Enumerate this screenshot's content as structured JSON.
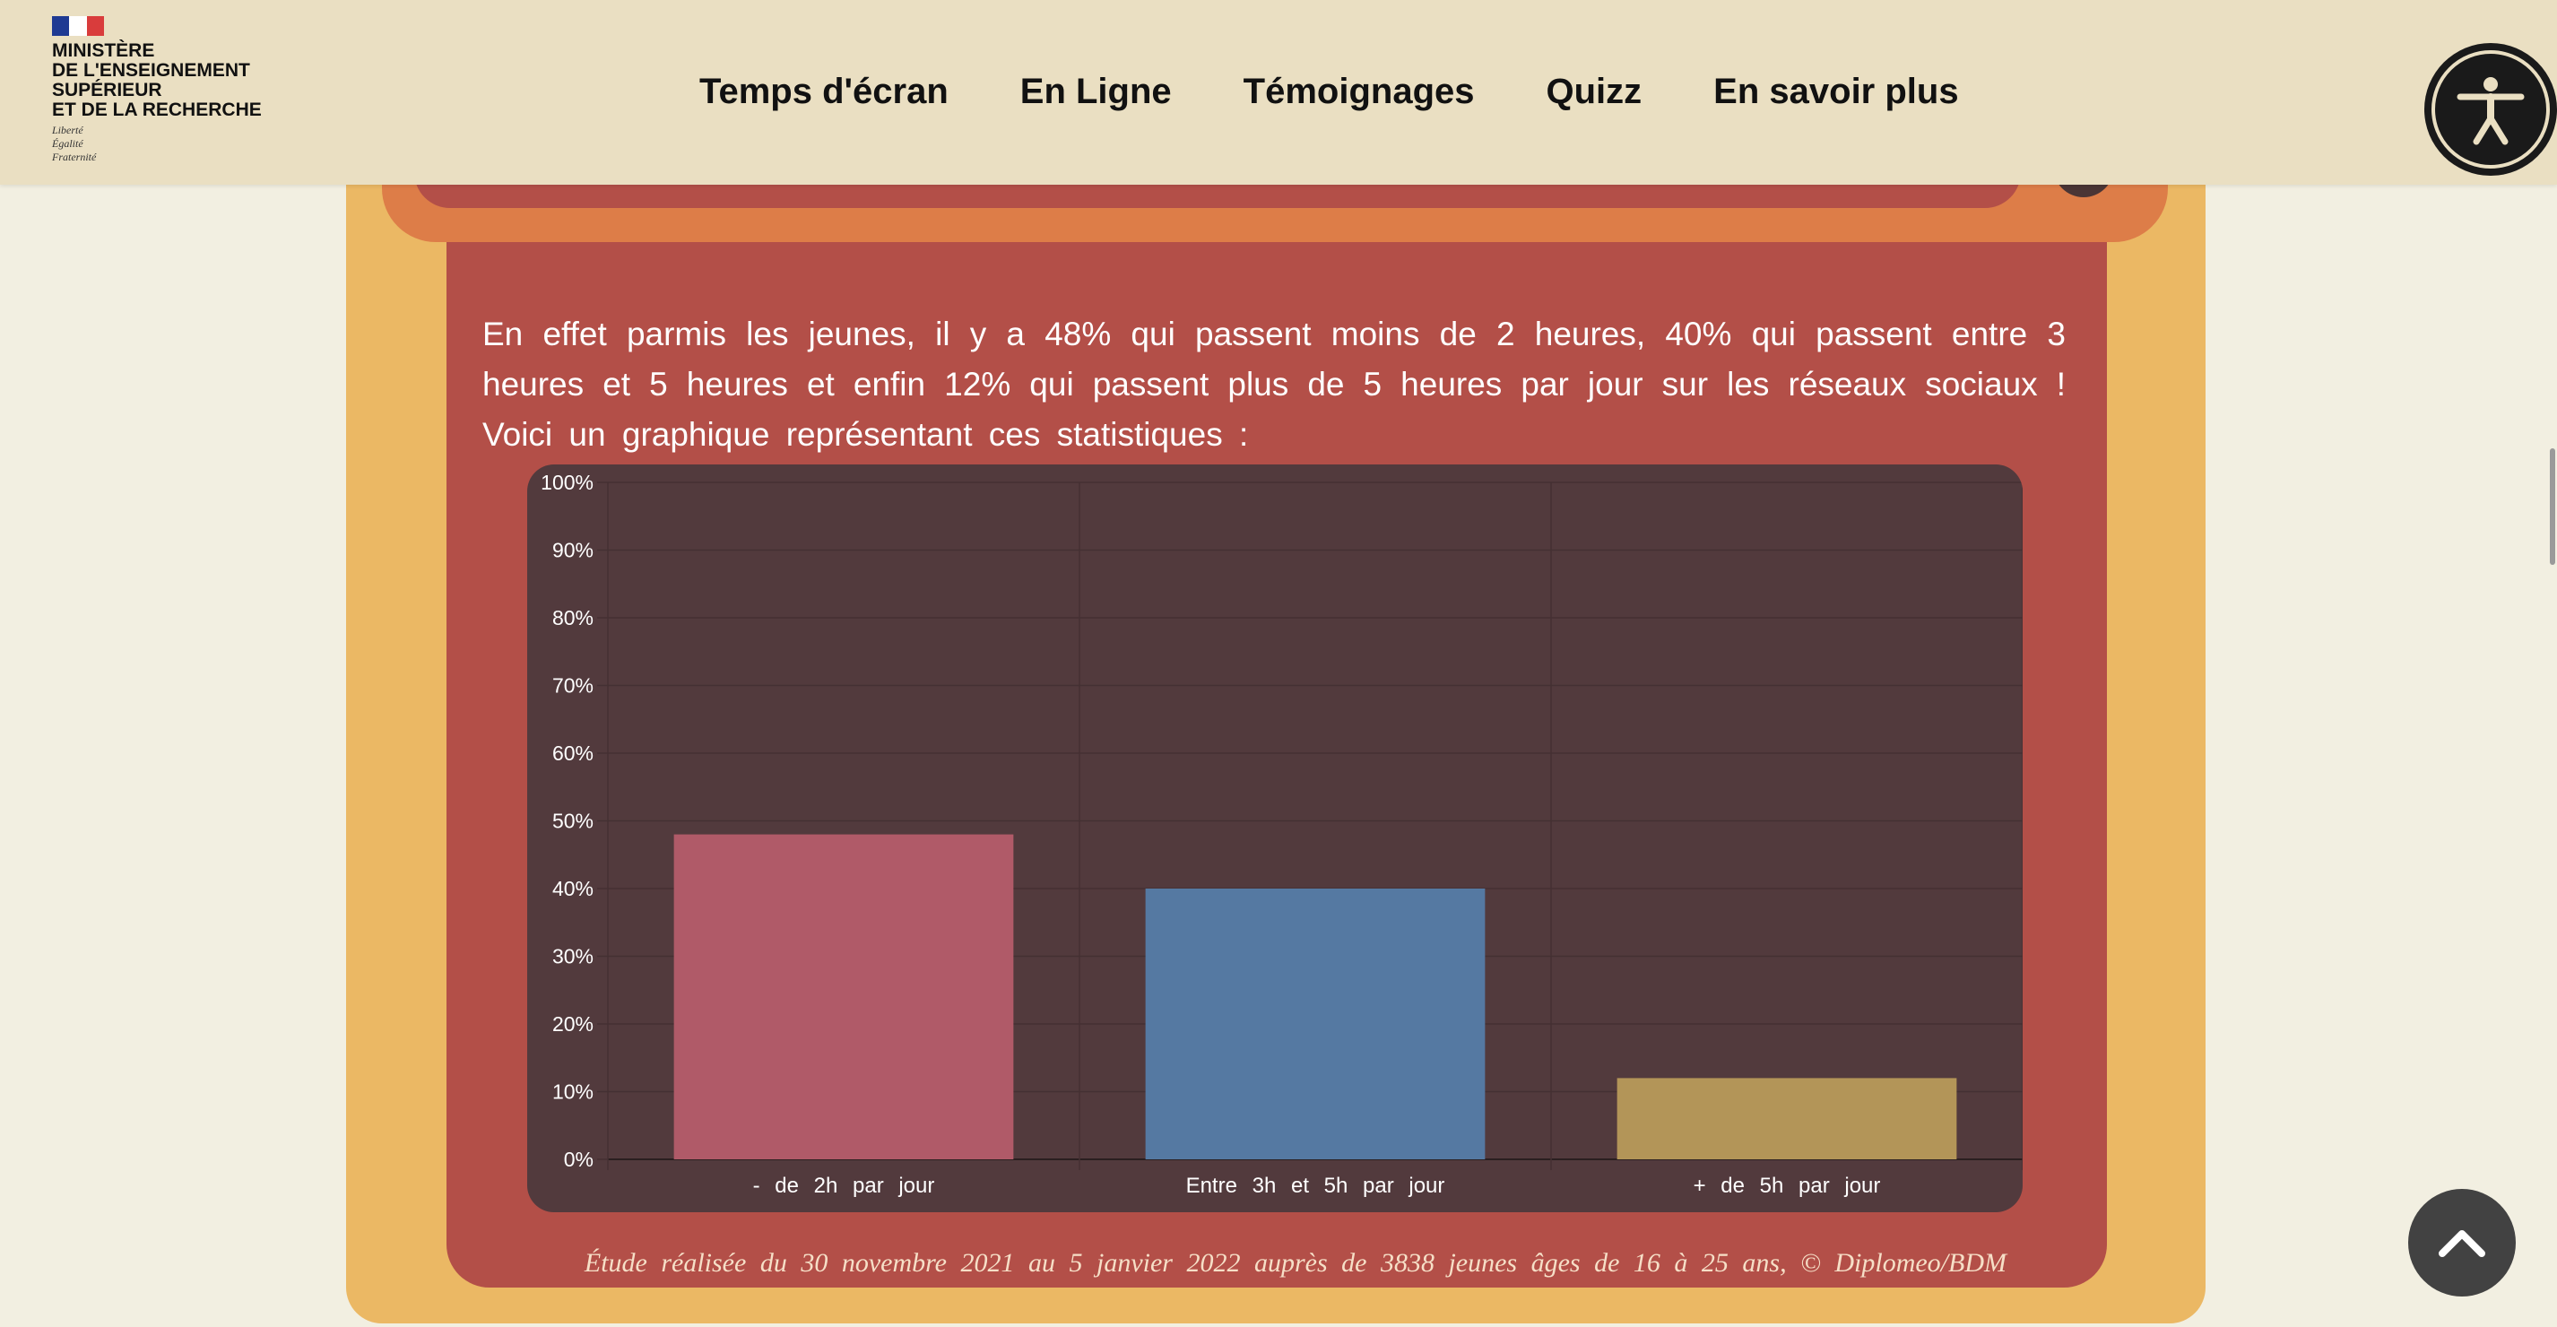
{
  "header": {
    "logo": {
      "name_lines": [
        "MINISTÈRE",
        "DE L'ENSEIGNEMENT",
        "SUPÉRIEUR",
        "ET DE LA RECHERCHE"
      ],
      "motto_lines": [
        "Liberté",
        "Égalité",
        "Fraternité"
      ]
    },
    "nav": [
      "Temps d'écran",
      "En Ligne",
      "Témoignages",
      "Quizz",
      "En savoir plus"
    ],
    "accessibility_icon": "accessibility-person-icon"
  },
  "content": {
    "paragraph": "En effet parmis les jeunes, il y a 48% qui passent moins de 2 heures, 40% qui passent entre 3 heures et 5 heures et enfin 12% qui passent plus de 5 heures par jour sur les réseaux sociaux ! Voici un graphique représentant ces statistiques :",
    "caption": "Étude réalisée du 30 novembre 2021 au 5 janvier 2022 auprès de 3838 jeunes âges de 16 à 25 ans, © Diplomeo/BDM"
  },
  "chart_data": {
    "type": "bar",
    "categories": [
      "- de 2h par jour",
      "Entre 3h et 5h par jour",
      "+ de 5h par jour"
    ],
    "values": [
      48,
      40,
      12
    ],
    "colors": [
      "#b05a68",
      "#5579a2",
      "#b39558"
    ],
    "ylim": [
      0,
      100
    ],
    "yticks": [
      "0%",
      "10%",
      "20%",
      "30%",
      "40%",
      "50%",
      "60%",
      "70%",
      "80%",
      "90%",
      "100%"
    ],
    "grid": true,
    "title": "",
    "xlabel": "",
    "ylabel": ""
  },
  "scroll_top_icon": "chevron-up-icon"
}
